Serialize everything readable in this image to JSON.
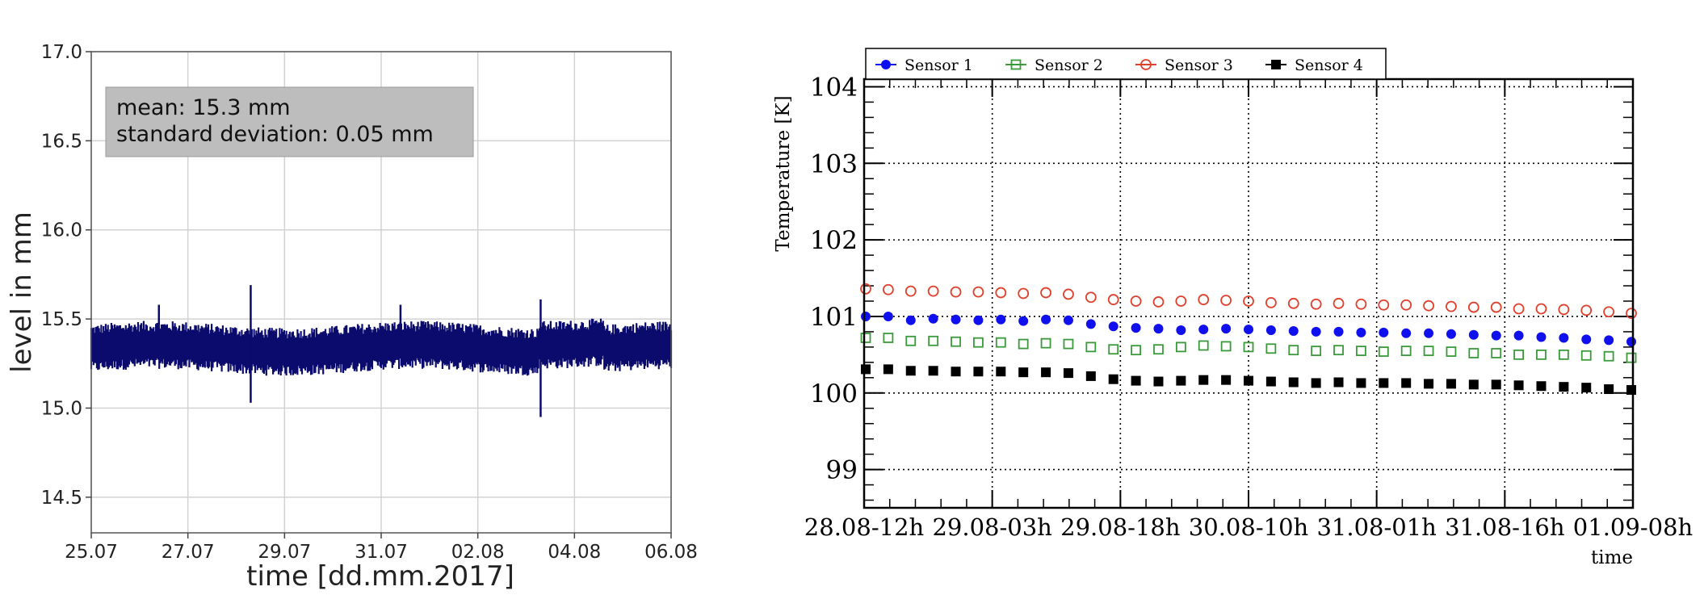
{
  "chart_data": [
    {
      "type": "line",
      "xlabel": "time [dd.mm.2017]",
      "ylabel": "level in mm",
      "ylim": [
        14.3,
        17.0
      ],
      "yticks": [
        "14.5",
        "15.0",
        "15.5",
        "16.0",
        "16.5",
        "17.0"
      ],
      "x_tick_labels": [
        "25.07",
        "27.07",
        "29.07",
        "31.07",
        "02.08",
        "04.08",
        "06.08"
      ],
      "xlim": [
        "25.07",
        "06.08"
      ],
      "grid": true,
      "annotation": [
        "mean: 15.3 mm",
        "standard deviation: 0.05 mm"
      ],
      "mean": 15.3,
      "std": 0.05,
      "band": {
        "low": 15.23,
        "high": 15.44
      },
      "spikes": [
        {
          "x": "26.4",
          "y_high": 15.58,
          "y_low": 15.28
        },
        {
          "x": "28.3",
          "y_high": 15.69,
          "y_low": 15.03
        },
        {
          "x": "31.4",
          "y_high": 15.58,
          "y_low": 15.28
        },
        {
          "x": "04.3",
          "y_high": 15.61,
          "y_low": 14.95
        }
      ],
      "color": "#0b0b6e"
    },
    {
      "type": "line",
      "xlabel": "time",
      "ylabel": "Temperature [K]",
      "ylim": [
        98.5,
        104.1
      ],
      "yticks": [
        "99",
        "100",
        "101",
        "102",
        "103",
        "104"
      ],
      "x_tick_labels": [
        "28.08-12h",
        "29.08-03h",
        "29.08-18h",
        "30.08-10h",
        "31.08-01h",
        "31.08-16h",
        "01.09-08h"
      ],
      "grid": true,
      "legend_position": "top-left",
      "series": [
        {
          "name": "Sensor 1",
          "color": "#1010ee",
          "marker": "filled-circle",
          "values": [
            101.0,
            101.0,
            100.95,
            100.97,
            100.96,
            100.95,
            100.96,
            100.94,
            100.96,
            100.95,
            100.9,
            100.87,
            100.85,
            100.84,
            100.82,
            100.83,
            100.84,
            100.83,
            100.82,
            100.81,
            100.8,
            100.8,
            100.79,
            100.79,
            100.78,
            100.78,
            100.77,
            100.76,
            100.75,
            100.75,
            100.73,
            100.72,
            100.7,
            100.69,
            100.67
          ]
        },
        {
          "name": "Sensor 2",
          "color": "#3a9a3a",
          "marker": "open-square",
          "values": [
            100.72,
            100.72,
            100.68,
            100.68,
            100.67,
            100.66,
            100.66,
            100.64,
            100.65,
            100.64,
            100.6,
            100.57,
            100.56,
            100.57,
            100.6,
            100.62,
            100.61,
            100.6,
            100.58,
            100.56,
            100.55,
            100.56,
            100.55,
            100.54,
            100.55,
            100.55,
            100.54,
            100.52,
            100.52,
            100.5,
            100.5,
            100.5,
            100.49,
            100.48,
            100.46
          ]
        },
        {
          "name": "Sensor 3",
          "color": "#e0402c",
          "marker": "open-circle",
          "values": [
            101.36,
            101.35,
            101.33,
            101.33,
            101.32,
            101.32,
            101.31,
            101.3,
            101.31,
            101.29,
            101.25,
            101.22,
            101.2,
            101.19,
            101.2,
            101.22,
            101.21,
            101.2,
            101.18,
            101.17,
            101.16,
            101.17,
            101.16,
            101.15,
            101.15,
            101.14,
            101.13,
            101.12,
            101.12,
            101.1,
            101.1,
            101.09,
            101.08,
            101.06,
            101.04
          ]
        },
        {
          "name": "Sensor 4",
          "color": "#000000",
          "marker": "filled-square",
          "values": [
            100.31,
            100.31,
            100.29,
            100.29,
            100.28,
            100.28,
            100.28,
            100.27,
            100.27,
            100.26,
            100.22,
            100.18,
            100.16,
            100.15,
            100.16,
            100.17,
            100.17,
            100.16,
            100.15,
            100.14,
            100.13,
            100.14,
            100.13,
            100.13,
            100.13,
            100.12,
            100.12,
            100.11,
            100.11,
            100.1,
            100.09,
            100.08,
            100.07,
            100.05,
            100.04
          ]
        }
      ]
    }
  ]
}
